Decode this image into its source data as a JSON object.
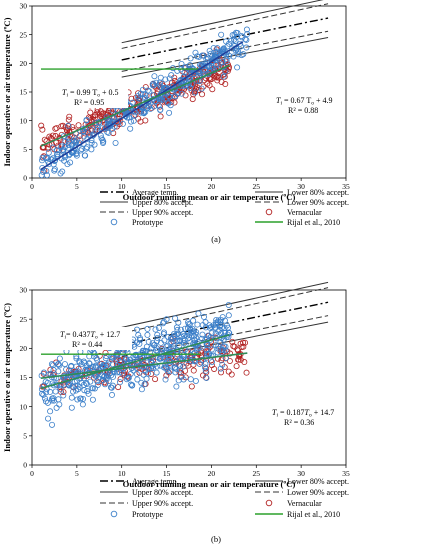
{
  "chart_data": [
    {
      "type": "scatter",
      "caption": "(a)",
      "xlabel": "Outdoor running mean or air temperature (ºC)",
      "ylabel": "Indoor operative or air temperature (ºC)",
      "xlim": [
        0,
        35
      ],
      "ylim": [
        0,
        30
      ],
      "xticks": [
        "0",
        "5",
        "10",
        "15",
        "20",
        "25",
        "30",
        "35"
      ],
      "yticks": [
        "0",
        "5",
        "10",
        "15",
        "20",
        "25",
        "30"
      ],
      "grid": false,
      "legend_position": "bottom",
      "legend": {
        "avg": "Average temp.",
        "lower80": "Lower 80% accept.",
        "upper80": "Upper 80% accept.",
        "lower90": "Lower 90% accept.",
        "upper90": "Upper 90% accept.",
        "vern": "Vernacular",
        "proto": "Prototype",
        "rijal": "Rijal et al., 2010"
      },
      "eq_proto": {
        "l1": "T",
        "l1sub": "i",
        "l1rest": " = 0.99 T",
        "l1sub2": "o",
        "l1end": " + 0.5",
        "r2": "R² = 0.95"
      },
      "eq_vern": {
        "l1": "T",
        "l1sub": "i",
        "l1rest": " = 0.67 T",
        "l1sub2": "o",
        "l1end": " + 4.9",
        "r2": "R² = 0.88"
      },
      "series": [
        {
          "name": "Vernacular",
          "kind": "scatter",
          "color": "#b22222",
          "n": 330,
          "trend": [
            0.67,
            4.9
          ],
          "xr": [
            1,
            22
          ],
          "sd": 1.3
        },
        {
          "name": "Prototype",
          "kind": "scatter",
          "color": "#3b7fc9",
          "n": 380,
          "trend": [
            0.99,
            0.5
          ],
          "xr": [
            1,
            24
          ],
          "sd": 1.5
        }
      ],
      "bands": {
        "x": [
          10,
          33
        ],
        "avg": [
          20.6,
          27.9
        ],
        "lower80": [
          17.6,
          24.5
        ],
        "upper80": [
          23.6,
          31.3
        ],
        "lower90": [
          18.6,
          25.6
        ],
        "upper90": [
          22.6,
          30.4
        ]
      },
      "rijal": {
        "x": [
          1,
          18.8
        ],
        "y": 19.0
      },
      "trendlines": [
        {
          "name": "Prototype trend",
          "a": 0.99,
          "b": 0.5,
          "x": [
            1,
            23.5
          ]
        },
        {
          "name": "Vernacular trend",
          "a": 0.67,
          "b": 4.9,
          "x": [
            1,
            22
          ]
        }
      ],
      "colors": {
        "trend_proto": "#1f3f9a",
        "trend_vern": "#2e8b57",
        "rijal": "#2ca02c"
      }
    },
    {
      "type": "scatter",
      "caption": "(b)",
      "xlabel": "Outdoor running mean or air temperature (ºC)",
      "ylabel": "Indoor operative or air temperature (ºC)",
      "xlim": [
        0,
        35
      ],
      "ylim": [
        0,
        30
      ],
      "xticks": [
        "0",
        "5",
        "10",
        "15",
        "20",
        "25",
        "30",
        "35"
      ],
      "yticks": [
        "0",
        "5",
        "10",
        "15",
        "20",
        "25",
        "30"
      ],
      "grid": false,
      "legend_position": "bottom",
      "legend": {
        "avg": "Average temp.",
        "lower80": "Lower 80% accept.",
        "upper80": "Upper 80% accept.",
        "lower90": "Lower 90% accept.",
        "upper90": "Upper 90% accept.",
        "vern": "Vernacular",
        "proto": "Prototype",
        "rijal": "Rijal et al., 2010"
      },
      "eq_proto": {
        "l1": "T",
        "l1sub": "i",
        "l1rest": "= 0.437",
        "l1sub2": "o",
        "l1pre2": "T",
        "l1end": " + 12.7",
        "r2": "R² = 0.44"
      },
      "eq_vern": {
        "l1": "T",
        "l1sub": "i",
        "l1rest": " = 0.187",
        "l1sub2": "o",
        "l1pre2": "T",
        "l1end": " + 14.7",
        "r2": "R² = 0.36"
      },
      "series": [
        {
          "name": "Vernacular",
          "kind": "scatter",
          "color": "#b22222",
          "n": 200,
          "trend": [
            0.187,
            14.7
          ],
          "xr": [
            1,
            24
          ],
          "sd": 1.6
        },
        {
          "name": "Prototype",
          "kind": "scatter",
          "color": "#3b7fc9",
          "n": 520,
          "trend": [
            0.437,
            12.7
          ],
          "xr": [
            1,
            22
          ],
          "sd": 2.4
        }
      ],
      "bands": {
        "x": [
          10,
          33
        ],
        "avg": [
          20.6,
          27.9
        ],
        "lower80": [
          17.6,
          24.5
        ],
        "upper80": [
          23.6,
          31.3
        ],
        "lower90": [
          18.6,
          25.6
        ],
        "upper90": [
          22.6,
          30.4
        ]
      },
      "rijal": {
        "x": [
          1,
          18.8
        ],
        "y": 19.0
      },
      "trendlines": [
        {
          "name": "Prototype trend",
          "a": 0.437,
          "b": 12.7,
          "x": [
            1,
            22
          ]
        },
        {
          "name": "Vernacular trend",
          "a": 0.187,
          "b": 14.7,
          "x": [
            1,
            24
          ]
        }
      ],
      "colors": {
        "trend_proto": "#2e8b57",
        "trend_vern": "#2e8b57",
        "rijal": "#2ca02c"
      }
    }
  ]
}
